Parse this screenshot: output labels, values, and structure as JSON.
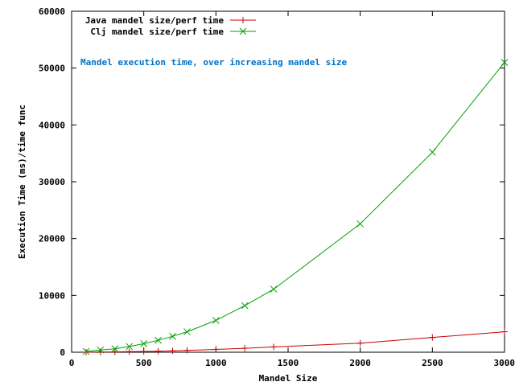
{
  "chart_data": {
    "type": "line",
    "title": "",
    "xlabel": "Mandel Size",
    "ylabel": "Execution Time (ms)/time func",
    "xlim": [
      0,
      3000
    ],
    "ylim": [
      0,
      60000
    ],
    "xticks": [
      0,
      500,
      1000,
      1500,
      2000,
      2500,
      3000
    ],
    "yticks": [
      0,
      10000,
      20000,
      30000,
      40000,
      50000,
      60000
    ],
    "grid": false,
    "legend_position": "top-left",
    "annotation": "Mandel execution time, over increasing mandel size",
    "annotation_color": "#0072c8",
    "series": [
      {
        "name": "Java mandel size/perf time",
        "color": "#cc0000",
        "marker": "plus",
        "x": [
          100,
          200,
          300,
          400,
          500,
          600,
          700,
          800,
          1000,
          1200,
          1400,
          2000,
          2500,
          3000
        ],
        "y": [
          10,
          30,
          60,
          100,
          130,
          190,
          260,
          330,
          500,
          700,
          940,
          1600,
          2600,
          3600
        ]
      },
      {
        "name": "Clj mandel size/perf time",
        "color": "#00a000",
        "marker": "cross",
        "x": [
          100,
          200,
          300,
          400,
          500,
          600,
          700,
          800,
          1000,
          1200,
          1400,
          2000,
          2500,
          3000
        ],
        "y": [
          150,
          400,
          600,
          1000,
          1500,
          2100,
          2800,
          3600,
          5600,
          8200,
          11100,
          22600,
          35200,
          51000
        ]
      }
    ]
  }
}
